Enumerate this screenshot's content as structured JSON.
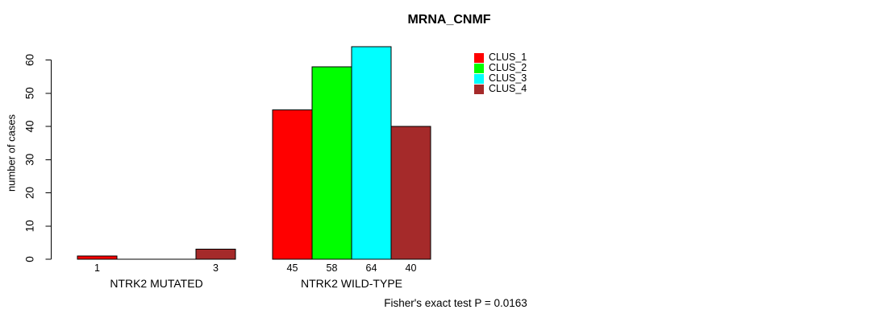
{
  "chart_data": {
    "type": "bar",
    "title": "MRNA_CNMF",
    "xlabel": "",
    "ylabel": "number of cases",
    "ylim": [
      0,
      60
    ],
    "yticks": [
      0,
      10,
      20,
      30,
      40,
      50,
      60
    ],
    "categories": [
      "NTRK2 MUTATED",
      "NTRK2 WILD-TYPE"
    ],
    "series": [
      {
        "name": "CLUS_1",
        "color": "#ff0000",
        "values": [
          1,
          45
        ]
      },
      {
        "name": "CLUS_2",
        "color": "#00ff00",
        "values": [
          0,
          58
        ]
      },
      {
        "name": "CLUS_3",
        "color": "#00ffff",
        "values": [
          0,
          64
        ]
      },
      {
        "name": "CLUS_4",
        "color": "#a52a2a",
        "values": [
          3,
          40
        ]
      }
    ],
    "bar_value_labels": {
      "group_0": [
        1,
        3
      ],
      "group_1": [
        45,
        58,
        64,
        40
      ]
    },
    "grid": "off",
    "legend_position": "top-right",
    "bar_border_color": "#000000",
    "annotation": "Fisher's exact test P = 0.0163"
  }
}
